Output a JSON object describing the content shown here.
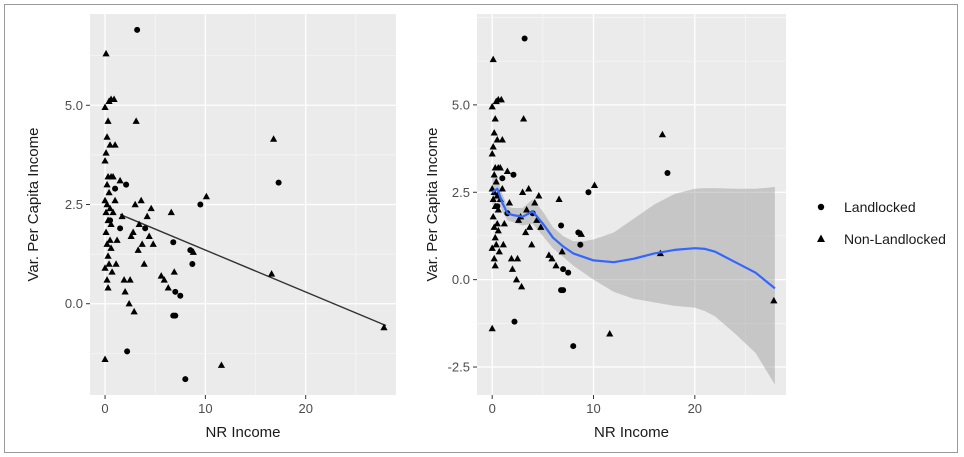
{
  "chart_data": [
    {
      "type": "scatter",
      "title": "",
      "xlabel": "NR Income",
      "ylabel": "Var. Per Capita Income",
      "xlim": [
        -1.5,
        29
      ],
      "ylim": [
        -2.3,
        7.3
      ],
      "xticks": [
        0,
        10,
        20
      ],
      "xtick_labels": [
        "0",
        "10",
        "20"
      ],
      "yticks": [
        0,
        2.5,
        5
      ],
      "ytick_labels": [
        "0.0",
        "2.5",
        "5.0"
      ],
      "grid": true,
      "series": [
        {
          "name": "Landlocked",
          "marker": "circle",
          "points": [
            [
              3.2,
              6.9
            ],
            [
              2.1,
              3.0
            ],
            [
              2.2,
              -1.2
            ],
            [
              8.0,
              -1.9
            ],
            [
              9.5,
              2.5
            ],
            [
              17.3,
              3.05
            ],
            [
              6.8,
              1.55
            ],
            [
              7.0,
              0.3
            ],
            [
              6.8,
              -0.3
            ],
            [
              7.0,
              -0.3
            ],
            [
              8.5,
              1.35
            ],
            [
              8.7,
              1.0
            ],
            [
              4.0,
              1.9
            ],
            [
              1.5,
              1.9
            ],
            [
              0.5,
              2.1
            ],
            [
              1.0,
              2.9
            ],
            [
              7.5,
              0.2
            ]
          ]
        },
        {
          "name": "Non-Landlocked",
          "marker": "triangle",
          "points": [
            [
              0.1,
              6.3
            ],
            [
              0.0,
              4.95
            ],
            [
              0.6,
              5.15
            ],
            [
              0.9,
              5.15
            ],
            [
              0.4,
              5.1
            ],
            [
              0.3,
              4.6
            ],
            [
              3.1,
              4.6
            ],
            [
              0.2,
              4.2
            ],
            [
              0.1,
              3.8
            ],
            [
              0.0,
              3.6
            ],
            [
              0.5,
              4.0
            ],
            [
              1.0,
              4.0
            ],
            [
              0.2,
              3.0
            ],
            [
              0.3,
              3.2
            ],
            [
              0.6,
              3.2
            ],
            [
              0.4,
              2.8
            ],
            [
              0.8,
              3.2
            ],
            [
              1.5,
              3.1
            ],
            [
              0.0,
              2.6
            ],
            [
              0.1,
              2.3
            ],
            [
              0.2,
              2.5
            ],
            [
              0.3,
              2.1
            ],
            [
              0.5,
              2.4
            ],
            [
              0.6,
              2.0
            ],
            [
              0.8,
              2.3
            ],
            [
              1.0,
              2.6
            ],
            [
              0.1,
              1.8
            ],
            [
              0.2,
              1.5
            ],
            [
              0.3,
              1.2
            ],
            [
              0.4,
              1.0
            ],
            [
              0.5,
              1.6
            ],
            [
              0.6,
              1.4
            ],
            [
              0.0,
              0.9
            ],
            [
              0.2,
              0.6
            ],
            [
              0.3,
              0.4
            ],
            [
              0.7,
              0.8
            ],
            [
              1.2,
              1.6
            ],
            [
              1.7,
              2.2
            ],
            [
              1.9,
              0.6
            ],
            [
              2.0,
              0.3
            ],
            [
              2.5,
              0.6
            ],
            [
              2.8,
              1.8
            ],
            [
              3.0,
              2.5
            ],
            [
              3.4,
              2.0
            ],
            [
              3.6,
              2.6
            ],
            [
              4.2,
              2.2
            ],
            [
              4.6,
              2.4
            ],
            [
              4.4,
              1.7
            ],
            [
              4.8,
              1.5
            ],
            [
              3.7,
              1.5
            ],
            [
              3.9,
              1.0
            ],
            [
              2.4,
              0.0
            ],
            [
              2.9,
              -0.2
            ],
            [
              5.6,
              0.7
            ],
            [
              6.9,
              0.8
            ],
            [
              6.3,
              0.4
            ],
            [
              6.6,
              2.3
            ],
            [
              8.8,
              1.3
            ],
            [
              10.1,
              2.7
            ],
            [
              11.6,
              -1.55
            ],
            [
              16.6,
              0.75
            ],
            [
              16.8,
              4.15
            ],
            [
              27.8,
              -0.6
            ],
            [
              0.0,
              -1.4
            ],
            [
              1.1,
              1.0
            ],
            [
              3.3,
              1.35
            ],
            [
              2.6,
              1.7
            ],
            [
              5.9,
              0.6
            ]
          ]
        }
      ]
    },
    {
      "type": "scatter",
      "title": "",
      "xlabel": "NR Income",
      "ylabel": "Var. Per Capita Income",
      "xlim": [
        -1.5,
        29
      ],
      "ylim": [
        -3.3,
        7.6
      ],
      "xticks": [
        0,
        10,
        20
      ],
      "xtick_labels": [
        "0",
        "10",
        "20"
      ],
      "yticks": [
        -2.5,
        0,
        2.5,
        5
      ],
      "ytick_labels": [
        "-2.5",
        "0.0",
        "2.5",
        "5.0"
      ],
      "grid": true,
      "legend": "right",
      "series": [
        {
          "name": "Landlocked",
          "marker": "circle",
          "points": [
            [
              3.2,
              6.9
            ],
            [
              2.1,
              3.0
            ],
            [
              2.2,
              -1.2
            ],
            [
              8.0,
              -1.9
            ],
            [
              9.5,
              2.5
            ],
            [
              17.3,
              3.05
            ],
            [
              6.8,
              1.55
            ],
            [
              7.0,
              0.3
            ],
            [
              6.8,
              -0.3
            ],
            [
              7.0,
              -0.3
            ],
            [
              8.5,
              1.35
            ],
            [
              8.7,
              1.0
            ],
            [
              4.0,
              1.9
            ],
            [
              1.5,
              1.9
            ],
            [
              0.5,
              2.1
            ],
            [
              1.0,
              2.9
            ],
            [
              7.5,
              0.2
            ]
          ]
        },
        {
          "name": "Non-Landlocked",
          "marker": "triangle",
          "points": [
            [
              0.1,
              6.3
            ],
            [
              0.0,
              4.95
            ],
            [
              0.6,
              5.15
            ],
            [
              0.9,
              5.15
            ],
            [
              0.4,
              5.1
            ],
            [
              0.3,
              4.6
            ],
            [
              3.1,
              4.6
            ],
            [
              0.2,
              4.2
            ],
            [
              0.1,
              3.8
            ],
            [
              0.0,
              3.6
            ],
            [
              0.5,
              4.0
            ],
            [
              1.0,
              4.0
            ],
            [
              0.2,
              3.0
            ],
            [
              0.3,
              3.2
            ],
            [
              0.6,
              3.2
            ],
            [
              0.4,
              2.8
            ],
            [
              0.8,
              3.2
            ],
            [
              1.5,
              3.1
            ],
            [
              0.0,
              2.6
            ],
            [
              0.1,
              2.3
            ],
            [
              0.2,
              2.5
            ],
            [
              0.3,
              2.1
            ],
            [
              0.5,
              2.4
            ],
            [
              0.6,
              2.0
            ],
            [
              0.8,
              2.3
            ],
            [
              1.0,
              2.6
            ],
            [
              0.1,
              1.8
            ],
            [
              0.2,
              1.5
            ],
            [
              0.3,
              1.2
            ],
            [
              0.4,
              1.0
            ],
            [
              0.5,
              1.6
            ],
            [
              0.6,
              1.4
            ],
            [
              0.0,
              0.9
            ],
            [
              0.2,
              0.6
            ],
            [
              0.3,
              0.4
            ],
            [
              0.7,
              0.8
            ],
            [
              1.2,
              1.6
            ],
            [
              1.7,
              2.2
            ],
            [
              1.9,
              0.6
            ],
            [
              2.0,
              0.3
            ],
            [
              2.5,
              0.6
            ],
            [
              2.8,
              1.8
            ],
            [
              3.0,
              2.5
            ],
            [
              3.4,
              2.0
            ],
            [
              3.6,
              2.6
            ],
            [
              4.2,
              2.2
            ],
            [
              4.6,
              2.4
            ],
            [
              4.4,
              1.7
            ],
            [
              4.8,
              1.5
            ],
            [
              3.7,
              1.5
            ],
            [
              3.9,
              1.0
            ],
            [
              2.4,
              0.0
            ],
            [
              2.9,
              -0.2
            ],
            [
              5.6,
              0.7
            ],
            [
              6.9,
              0.8
            ],
            [
              6.3,
              0.4
            ],
            [
              6.6,
              2.3
            ],
            [
              8.8,
              1.3
            ],
            [
              10.1,
              2.7
            ],
            [
              11.6,
              -1.55
            ],
            [
              16.6,
              0.75
            ],
            [
              16.8,
              4.15
            ],
            [
              27.8,
              -0.6
            ],
            [
              0.0,
              -1.4
            ],
            [
              1.1,
              1.0
            ],
            [
              3.3,
              1.35
            ],
            [
              2.6,
              1.7
            ],
            [
              5.9,
              0.6
            ]
          ]
        }
      ]
    }
  ],
  "fit_lines": {
    "linear": {
      "color": "#333333",
      "points": [
        [
          1.5,
          2.25
        ],
        [
          28,
          -0.55
        ]
      ]
    },
    "smooth": {
      "color": "#3366ff",
      "band_color": "#999999",
      "x": [
        0.0,
        0.5,
        1.0,
        1.5,
        2.0,
        3.0,
        4.0,
        5.0,
        6.0,
        7.0,
        8.0,
        9.0,
        10.0,
        12.0,
        14.0,
        16.0,
        18.0,
        20.0,
        21.0,
        22.0,
        24.0,
        26.0,
        27.9
      ],
      "y": [
        2.5,
        2.6,
        2.2,
        1.9,
        1.85,
        1.8,
        1.95,
        1.6,
        1.2,
        0.95,
        0.75,
        0.65,
        0.55,
        0.5,
        0.6,
        0.75,
        0.85,
        0.9,
        0.88,
        0.8,
        0.5,
        0.2,
        -0.25
      ],
      "lower": [
        2.1,
        2.3,
        1.95,
        1.7,
        1.65,
        1.55,
        1.6,
        1.25,
        0.9,
        0.65,
        0.4,
        0.2,
        0.0,
        -0.35,
        -0.55,
        -0.65,
        -0.75,
        -0.8,
        -0.9,
        -1.05,
        -1.55,
        -2.1,
        -3.0
      ],
      "upper": [
        2.95,
        2.9,
        2.45,
        2.1,
        2.05,
        2.05,
        2.3,
        1.95,
        1.5,
        1.25,
        1.1,
        1.1,
        1.15,
        1.35,
        1.75,
        2.15,
        2.45,
        2.6,
        2.62,
        2.62,
        2.6,
        2.6,
        2.65
      ]
    }
  },
  "legend": {
    "items": [
      {
        "label": "Landlocked",
        "marker": "circle"
      },
      {
        "label": "Non-Landlocked",
        "marker": "triangle"
      }
    ]
  }
}
